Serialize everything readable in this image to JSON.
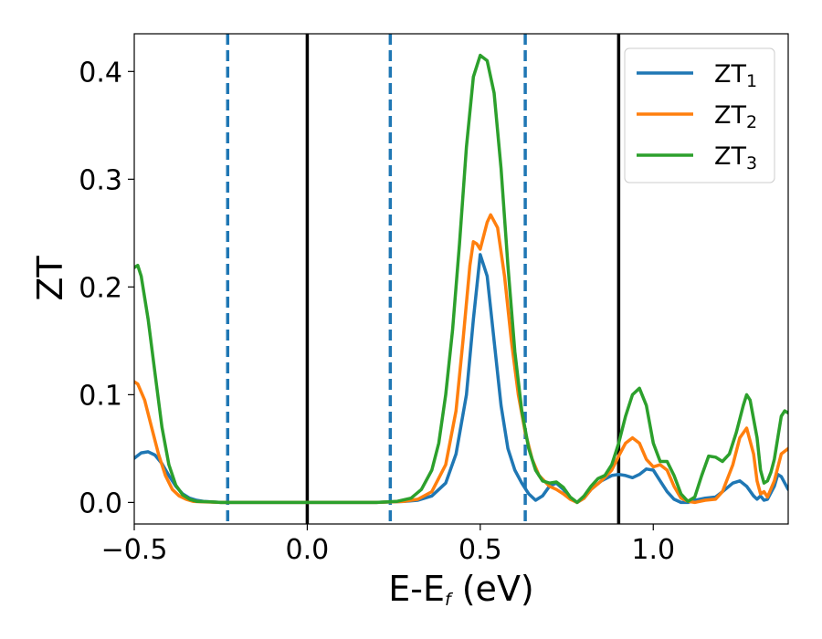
{
  "chart_data": {
    "type": "line",
    "title": "",
    "xlabel": {
      "main": "E-E",
      "sub": "f",
      "tail": " (eV)"
    },
    "ylabel": "ZT",
    "xlim": [
      -0.5,
      1.39
    ],
    "ylim": [
      -0.02,
      0.435
    ],
    "xticks": [
      {
        "value": -0.5,
        "label": "−0.5"
      },
      {
        "value": 0.0,
        "label": "0.0"
      },
      {
        "value": 0.5,
        "label": "0.5"
      },
      {
        "value": 1.0,
        "label": "1.0"
      }
    ],
    "yticks": [
      {
        "value": 0.0,
        "label": "0.0"
      },
      {
        "value": 0.1,
        "label": "0.1"
      },
      {
        "value": 0.2,
        "label": "0.2"
      },
      {
        "value": 0.3,
        "label": "0.3"
      },
      {
        "value": 0.4,
        "label": "0.4"
      }
    ],
    "grid": false,
    "legend_position": "top-right",
    "vlines": [
      {
        "x": 0.0,
        "color": "#000000",
        "style": "solid"
      },
      {
        "x": 0.9,
        "color": "#000000",
        "style": "solid"
      },
      {
        "x": -0.23,
        "color": "#1f77b4",
        "style": "dashed"
      },
      {
        "x": 0.24,
        "color": "#1f77b4",
        "style": "dashed"
      },
      {
        "x": 0.63,
        "color": "#1f77b4",
        "style": "dashed"
      }
    ],
    "series": [
      {
        "name": "ZT",
        "name_sub": "1",
        "color": "#1f77b4",
        "points": [
          [
            -0.5,
            0.041
          ],
          [
            -0.48,
            0.046
          ],
          [
            -0.46,
            0.047
          ],
          [
            -0.44,
            0.044
          ],
          [
            -0.42,
            0.036
          ],
          [
            -0.4,
            0.025
          ],
          [
            -0.38,
            0.015
          ],
          [
            -0.36,
            0.008
          ],
          [
            -0.34,
            0.004
          ],
          [
            -0.32,
            0.002
          ],
          [
            -0.3,
            0.001
          ],
          [
            -0.28,
            0.0005
          ],
          [
            -0.25,
            0.0
          ],
          [
            -0.2,
            0.0
          ],
          [
            -0.1,
            0.0
          ],
          [
            0.0,
            0.0
          ],
          [
            0.1,
            0.0
          ],
          [
            0.2,
            0.0
          ],
          [
            0.28,
            0.001
          ],
          [
            0.32,
            0.002
          ],
          [
            0.36,
            0.006
          ],
          [
            0.4,
            0.018
          ],
          [
            0.43,
            0.045
          ],
          [
            0.46,
            0.1
          ],
          [
            0.48,
            0.17
          ],
          [
            0.5,
            0.23
          ],
          [
            0.52,
            0.21
          ],
          [
            0.54,
            0.15
          ],
          [
            0.56,
            0.09
          ],
          [
            0.58,
            0.05
          ],
          [
            0.6,
            0.03
          ],
          [
            0.62,
            0.018
          ],
          [
            0.64,
            0.008
          ],
          [
            0.66,
            0.002
          ],
          [
            0.68,
            0.006
          ],
          [
            0.7,
            0.015
          ],
          [
            0.72,
            0.018
          ],
          [
            0.74,
            0.012
          ],
          [
            0.76,
            0.004
          ],
          [
            0.78,
            0.0
          ],
          [
            0.8,
            0.004
          ],
          [
            0.82,
            0.012
          ],
          [
            0.85,
            0.02
          ],
          [
            0.88,
            0.025
          ],
          [
            0.9,
            0.026
          ],
          [
            0.92,
            0.025
          ],
          [
            0.94,
            0.023
          ],
          [
            0.96,
            0.026
          ],
          [
            0.98,
            0.031
          ],
          [
            1.0,
            0.03
          ],
          [
            1.02,
            0.02
          ],
          [
            1.04,
            0.01
          ],
          [
            1.06,
            0.003
          ],
          [
            1.08,
            0.0
          ],
          [
            1.1,
            0.0
          ],
          [
            1.12,
            0.002
          ],
          [
            1.15,
            0.004
          ],
          [
            1.18,
            0.005
          ],
          [
            1.2,
            0.01
          ],
          [
            1.23,
            0.018
          ],
          [
            1.25,
            0.02
          ],
          [
            1.27,
            0.015
          ],
          [
            1.29,
            0.006
          ],
          [
            1.3,
            0.003
          ],
          [
            1.31,
            0.006
          ],
          [
            1.32,
            0.002
          ],
          [
            1.33,
            0.003
          ],
          [
            1.35,
            0.015
          ],
          [
            1.36,
            0.026
          ],
          [
            1.37,
            0.024
          ],
          [
            1.39,
            0.012
          ]
        ]
      },
      {
        "name": "ZT",
        "name_sub": "2",
        "color": "#ff7f0e",
        "points": [
          [
            -0.5,
            0.112
          ],
          [
            -0.49,
            0.11
          ],
          [
            -0.47,
            0.095
          ],
          [
            -0.45,
            0.07
          ],
          [
            -0.43,
            0.045
          ],
          [
            -0.41,
            0.025
          ],
          [
            -0.39,
            0.012
          ],
          [
            -0.37,
            0.006
          ],
          [
            -0.35,
            0.003
          ],
          [
            -0.33,
            0.001
          ],
          [
            -0.3,
            0.0005
          ],
          [
            -0.25,
            0.0
          ],
          [
            -0.2,
            0.0
          ],
          [
            -0.1,
            0.0
          ],
          [
            0.0,
            0.0
          ],
          [
            0.1,
            0.0
          ],
          [
            0.2,
            0.0
          ],
          [
            0.28,
            0.001
          ],
          [
            0.32,
            0.003
          ],
          [
            0.36,
            0.01
          ],
          [
            0.4,
            0.035
          ],
          [
            0.43,
            0.085
          ],
          [
            0.45,
            0.15
          ],
          [
            0.47,
            0.22
          ],
          [
            0.48,
            0.242
          ],
          [
            0.49,
            0.24
          ],
          [
            0.5,
            0.235
          ],
          [
            0.52,
            0.26
          ],
          [
            0.53,
            0.267
          ],
          [
            0.55,
            0.255
          ],
          [
            0.57,
            0.21
          ],
          [
            0.59,
            0.15
          ],
          [
            0.61,
            0.1
          ],
          [
            0.63,
            0.065
          ],
          [
            0.65,
            0.04
          ],
          [
            0.67,
            0.025
          ],
          [
            0.7,
            0.015
          ],
          [
            0.72,
            0.012
          ],
          [
            0.74,
            0.008
          ],
          [
            0.76,
            0.003
          ],
          [
            0.78,
            0.0
          ],
          [
            0.8,
            0.004
          ],
          [
            0.82,
            0.012
          ],
          [
            0.85,
            0.02
          ],
          [
            0.88,
            0.03
          ],
          [
            0.9,
            0.043
          ],
          [
            0.92,
            0.055
          ],
          [
            0.94,
            0.06
          ],
          [
            0.96,
            0.055
          ],
          [
            0.98,
            0.04
          ],
          [
            1.0,
            0.033
          ],
          [
            1.02,
            0.035
          ],
          [
            1.04,
            0.03
          ],
          [
            1.06,
            0.015
          ],
          [
            1.08,
            0.004
          ],
          [
            1.1,
            0.001
          ],
          [
            1.12,
            0.0
          ],
          [
            1.15,
            0.002
          ],
          [
            1.18,
            0.003
          ],
          [
            1.2,
            0.01
          ],
          [
            1.23,
            0.035
          ],
          [
            1.25,
            0.06
          ],
          [
            1.27,
            0.069
          ],
          [
            1.29,
            0.045
          ],
          [
            1.3,
            0.02
          ],
          [
            1.31,
            0.008
          ],
          [
            1.32,
            0.01
          ],
          [
            1.33,
            0.005
          ],
          [
            1.35,
            0.02
          ],
          [
            1.37,
            0.045
          ],
          [
            1.39,
            0.05
          ]
        ]
      },
      {
        "name": "ZT",
        "name_sub": "3",
        "color": "#2ca02c",
        "points": [
          [
            -0.5,
            0.218
          ],
          [
            -0.49,
            0.22
          ],
          [
            -0.48,
            0.21
          ],
          [
            -0.46,
            0.17
          ],
          [
            -0.44,
            0.12
          ],
          [
            -0.42,
            0.07
          ],
          [
            -0.4,
            0.035
          ],
          [
            -0.38,
            0.016
          ],
          [
            -0.36,
            0.007
          ],
          [
            -0.34,
            0.003
          ],
          [
            -0.32,
            0.001
          ],
          [
            -0.28,
            0.0005
          ],
          [
            -0.25,
            0.0
          ],
          [
            -0.2,
            0.0
          ],
          [
            -0.1,
            0.0
          ],
          [
            0.0,
            0.0
          ],
          [
            0.1,
            0.0
          ],
          [
            0.2,
            0.0
          ],
          [
            0.26,
            0.001
          ],
          [
            0.3,
            0.004
          ],
          [
            0.33,
            0.012
          ],
          [
            0.36,
            0.03
          ],
          [
            0.38,
            0.055
          ],
          [
            0.4,
            0.1
          ],
          [
            0.42,
            0.16
          ],
          [
            0.44,
            0.24
          ],
          [
            0.46,
            0.33
          ],
          [
            0.48,
            0.395
          ],
          [
            0.5,
            0.415
          ],
          [
            0.52,
            0.41
          ],
          [
            0.54,
            0.38
          ],
          [
            0.56,
            0.31
          ],
          [
            0.58,
            0.22
          ],
          [
            0.6,
            0.14
          ],
          [
            0.62,
            0.085
          ],
          [
            0.64,
            0.05
          ],
          [
            0.66,
            0.03
          ],
          [
            0.68,
            0.02
          ],
          [
            0.7,
            0.018
          ],
          [
            0.72,
            0.019
          ],
          [
            0.74,
            0.014
          ],
          [
            0.76,
            0.005
          ],
          [
            0.78,
            0.0
          ],
          [
            0.8,
            0.006
          ],
          [
            0.82,
            0.015
          ],
          [
            0.84,
            0.022
          ],
          [
            0.86,
            0.025
          ],
          [
            0.88,
            0.035
          ],
          [
            0.9,
            0.055
          ],
          [
            0.92,
            0.08
          ],
          [
            0.94,
            0.1
          ],
          [
            0.96,
            0.106
          ],
          [
            0.98,
            0.09
          ],
          [
            1.0,
            0.055
          ],
          [
            1.02,
            0.038
          ],
          [
            1.04,
            0.038
          ],
          [
            1.06,
            0.025
          ],
          [
            1.08,
            0.008
          ],
          [
            1.1,
            0.001
          ],
          [
            1.12,
            0.005
          ],
          [
            1.14,
            0.025
          ],
          [
            1.16,
            0.043
          ],
          [
            1.18,
            0.042
          ],
          [
            1.2,
            0.038
          ],
          [
            1.22,
            0.045
          ],
          [
            1.24,
            0.065
          ],
          [
            1.26,
            0.09
          ],
          [
            1.27,
            0.1
          ],
          [
            1.28,
            0.095
          ],
          [
            1.3,
            0.06
          ],
          [
            1.31,
            0.03
          ],
          [
            1.32,
            0.018
          ],
          [
            1.33,
            0.02
          ],
          [
            1.34,
            0.028
          ],
          [
            1.35,
            0.04
          ],
          [
            1.36,
            0.06
          ],
          [
            1.37,
            0.08
          ],
          [
            1.38,
            0.085
          ],
          [
            1.39,
            0.083
          ]
        ]
      }
    ]
  }
}
